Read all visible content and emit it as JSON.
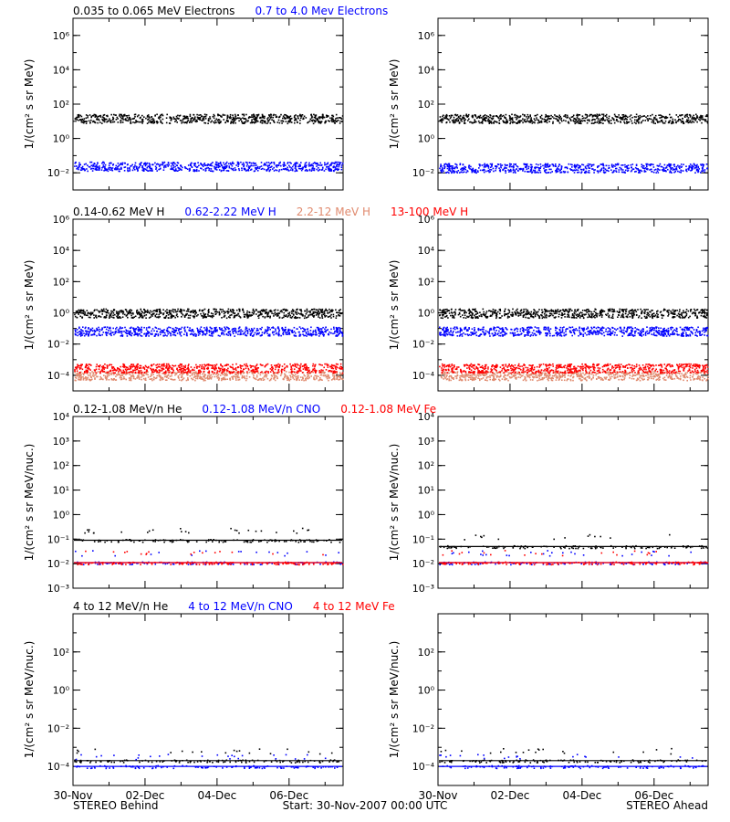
{
  "chart_data": {
    "type": "scatter",
    "x_ticks": [
      "30-Nov",
      "02-Dec",
      "04-Dec",
      "06-Dec"
    ],
    "x_domain_days": [
      0,
      7.5
    ],
    "footer": {
      "left": "STEREO Behind",
      "center": "Start: 30-Nov-2007 00:00 UTC",
      "right": "STEREO Ahead"
    },
    "rows": [
      {
        "legend": [
          {
            "label": "0.035 to 0.065 MeV Electrons",
            "color": "#000000"
          },
          {
            "label": "0.7 to 4.0 Mev Electrons",
            "color": "#0000ff"
          }
        ],
        "ylabel": "1/(cm² s sr MeV)",
        "ylog_range": [
          -3,
          7
        ],
        "y_ticks": [
          "10⁶",
          "10⁴",
          "10²",
          "10⁰",
          "10⁻²"
        ],
        "series": [
          {
            "color": "#000000",
            "left_level": 15,
            "right_level": 15
          },
          {
            "color": "#0000ff",
            "left_level": 0.025,
            "right_level": 0.02
          }
        ]
      },
      {
        "legend": [
          {
            "label": "0.14-0.62 MeV H",
            "color": "#000000"
          },
          {
            "label": "0.62-2.22 MeV H",
            "color": "#0000ff"
          },
          {
            "label": "2.2-12 MeV H",
            "color": "#e08a6e"
          },
          {
            "label": "13-100 MeV H",
            "color": "#ff0000"
          }
        ],
        "ylabel": "1/(cm² s sr MeV)",
        "ylog_range": [
          -5,
          6
        ],
        "y_ticks": [
          "10⁶",
          "10⁴",
          "10²",
          "10⁰",
          "10⁻²",
          "10⁻⁴"
        ],
        "series": [
          {
            "color": "#000000",
            "left_level": 1,
            "right_level": 1
          },
          {
            "color": "#0000ff",
            "left_level": 0.07,
            "right_level": 0.07
          },
          {
            "color": "#e08a6e",
            "left_level": 0.0001,
            "right_level": 0.0001
          },
          {
            "color": "#ff0000",
            "left_level": 0.0003,
            "right_level": 0.0003
          }
        ]
      },
      {
        "legend": [
          {
            "label": "0.12-1.08 MeV/n He",
            "color": "#000000"
          },
          {
            "label": "0.12-1.08 MeV/n CNO",
            "color": "#0000ff"
          },
          {
            "label": "0.12-1.08 MeV Fe",
            "color": "#ff0000"
          }
        ],
        "ylabel": "1/(cm² s sr MeV/nuc.)",
        "ylog_range": [
          -3,
          4
        ],
        "y_ticks": [
          "10⁴",
          "10³",
          "10²",
          "10¹",
          "10⁰",
          "10⁻¹",
          "10⁻²",
          "10⁻³"
        ],
        "series": [
          {
            "color": "#000000",
            "left_level": 0.09,
            "right_level": 0.05
          },
          {
            "color": "#0000ff",
            "left_level": 0.011,
            "right_level": 0.011
          },
          {
            "color": "#ff0000",
            "left_level": 0.011,
            "right_level": 0.011
          }
        ]
      },
      {
        "legend": [
          {
            "label": "4 to 12 MeV/n He",
            "color": "#000000"
          },
          {
            "label": "4 to 12 MeV/n CNO",
            "color": "#0000ff"
          },
          {
            "label": "4 to 12 MeV Fe",
            "color": "#ff0000"
          }
        ],
        "ylabel": "1/(cm² s sr MeV/nuc.)",
        "ylog_range": [
          -5,
          4
        ],
        "y_ticks": [
          "10²",
          "10⁰",
          "10⁻²",
          "10⁻⁴"
        ],
        "series": [
          {
            "color": "#000000",
            "left_level": 0.0002,
            "right_level": 0.0002
          },
          {
            "color": "#0000ff",
            "left_level": 0.0001,
            "right_level": 0.0001
          }
        ]
      }
    ]
  }
}
